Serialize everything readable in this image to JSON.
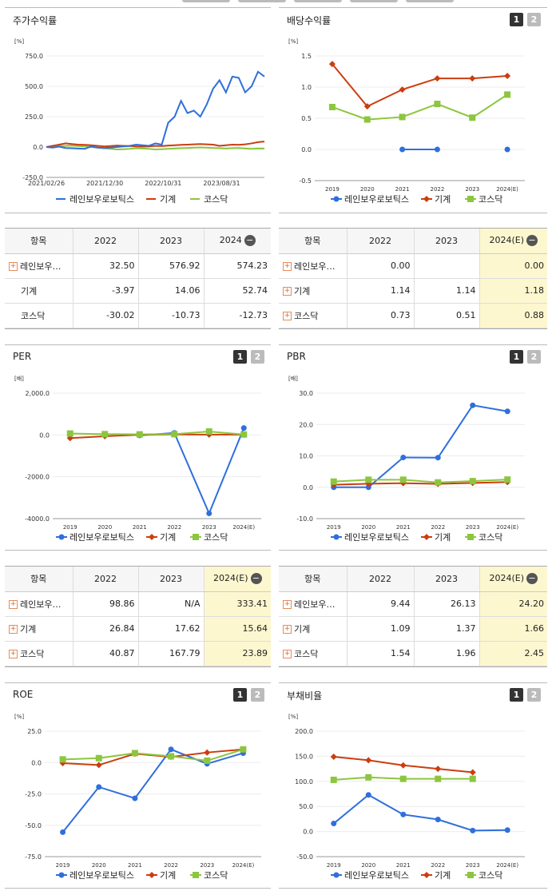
{
  "colors": {
    "rainbow": "#2f6fdc",
    "machine": "#cc3d10",
    "kosdaq": "#8cc63f"
  },
  "legend": [
    "레인보우로보틱스",
    "기계",
    "코스닥"
  ],
  "panels": {
    "stock_return": {
      "title": "주가수익률",
      "unit": "[%]"
    },
    "dividend": {
      "title": "배당수익률",
      "unit": "[%]"
    },
    "per": {
      "title": "PER",
      "unit": "[배]"
    },
    "pbr": {
      "title": "PBR",
      "unit": "[배]"
    },
    "roe": {
      "title": "ROE",
      "unit": "[%]"
    },
    "debt": {
      "title": "부채비율",
      "unit": "[%]"
    }
  },
  "buttons": {
    "one": "1",
    "two": "2"
  },
  "tables": {
    "stock_return": {
      "head": [
        "항목",
        "2022",
        "2023",
        "2024"
      ],
      "rows": [
        {
          "name": "레인보우…",
          "plus": true,
          "v": [
            "32.50",
            "576.92",
            "574.23"
          ]
        },
        {
          "name": "기계",
          "plus": false,
          "v": [
            "-3.97",
            "14.06",
            "52.74"
          ]
        },
        {
          "name": "코스닥",
          "plus": false,
          "v": [
            "-30.02",
            "-10.73",
            "-12.73"
          ]
        }
      ]
    },
    "dividend": {
      "head": [
        "항목",
        "2022",
        "2023",
        "2024(E)"
      ],
      "rows": [
        {
          "name": "레인보우…",
          "plus": true,
          "v": [
            "0.00",
            "",
            "0.00"
          ]
        },
        {
          "name": "기계",
          "plus": true,
          "v": [
            "1.14",
            "1.14",
            "1.18"
          ]
        },
        {
          "name": "코스닥",
          "plus": true,
          "v": [
            "0.73",
            "0.51",
            "0.88"
          ]
        }
      ]
    },
    "per": {
      "head": [
        "항목",
        "2022",
        "2023",
        "2024(E)"
      ],
      "rows": [
        {
          "name": "레인보우…",
          "plus": true,
          "v": [
            "98.86",
            "N/A",
            "333.41"
          ]
        },
        {
          "name": "기계",
          "plus": true,
          "v": [
            "26.84",
            "17.62",
            "15.64"
          ]
        },
        {
          "name": "코스닥",
          "plus": true,
          "v": [
            "40.87",
            "167.79",
            "23.89"
          ]
        }
      ]
    },
    "pbr": {
      "head": [
        "항목",
        "2022",
        "2023",
        "2024(E)"
      ],
      "rows": [
        {
          "name": "레인보우…",
          "plus": true,
          "v": [
            "9.44",
            "26.13",
            "24.20"
          ]
        },
        {
          "name": "기계",
          "plus": true,
          "v": [
            "1.09",
            "1.37",
            "1.66"
          ]
        },
        {
          "name": "코스닥",
          "plus": true,
          "v": [
            "1.54",
            "1.96",
            "2.45"
          ]
        }
      ]
    }
  },
  "chart_data": [
    {
      "id": "stock_return",
      "type": "line",
      "x_ticks": [
        "2021/02/26",
        "2021/12/30",
        "2022/10/31",
        "2023/08/31"
      ],
      "y_ticks": [
        "750.0",
        "500.0",
        "250.0",
        "0.0",
        "-250.0"
      ],
      "ylim": [
        -250,
        750
      ],
      "series": [
        {
          "name": "레인보우로보틱스",
          "values": [
            0,
            -5,
            3,
            -8,
            -10,
            -12,
            -15,
            5,
            -5,
            -8,
            -5,
            0,
            5,
            10,
            20,
            15,
            10,
            30,
            20,
            200,
            250,
            380,
            280,
            300,
            250,
            350,
            480,
            550,
            450,
            580,
            570,
            450,
            500,
            620,
            580
          ]
        },
        {
          "name": "기계",
          "values": [
            0,
            10,
            20,
            30,
            25,
            20,
            18,
            15,
            10,
            5,
            8,
            12,
            10,
            8,
            5,
            3,
            5,
            10,
            8,
            12,
            15,
            18,
            20,
            22,
            25,
            22,
            20,
            10,
            15,
            20,
            18,
            22,
            30,
            40,
            45
          ]
        },
        {
          "name": "코스닥",
          "values": [
            0,
            5,
            8,
            10,
            12,
            8,
            5,
            0,
            -5,
            -10,
            -15,
            -20,
            -18,
            -15,
            -10,
            -12,
            -15,
            -20,
            -18,
            -15,
            -12,
            -10,
            -8,
            -5,
            -3,
            -5,
            -8,
            -10,
            -12,
            -10,
            -8,
            -12,
            -15,
            -12,
            -13
          ]
        }
      ]
    },
    {
      "id": "dividend",
      "type": "line",
      "categories": [
        "2019",
        "2020",
        "2021",
        "2022",
        "2023",
        "2024(E)"
      ],
      "y_ticks": [
        "1.5",
        "1.0",
        "0.5",
        "0.0",
        "-0.5"
      ],
      "ylim": [
        -0.5,
        1.5
      ],
      "series": [
        {
          "name": "레인보우로보틱스",
          "values": [
            null,
            null,
            0.0,
            0.0,
            null,
            0.0
          ]
        },
        {
          "name": "기계",
          "values": [
            1.37,
            0.69,
            0.96,
            1.14,
            1.14,
            1.18
          ]
        },
        {
          "name": "코스닥",
          "values": [
            0.68,
            0.48,
            0.52,
            0.73,
            0.51,
            0.88
          ]
        }
      ]
    },
    {
      "id": "per",
      "type": "line",
      "categories": [
        "2019",
        "2020",
        "2021",
        "2022",
        "2023",
        "2024(E)"
      ],
      "y_ticks": [
        "2,000.0",
        "0.0",
        "-2000.0",
        "-4000.0"
      ],
      "ylim": [
        -4000,
        2000
      ],
      "series": [
        {
          "name": "레인보우로보틱스",
          "values": [
            null,
            null,
            -20,
            98.86,
            -3750,
            333.41
          ]
        },
        {
          "name": "기계",
          "values": [
            -150,
            -60,
            10,
            26.84,
            17.62,
            15.64
          ]
        },
        {
          "name": "코스닥",
          "values": [
            70,
            40,
            30,
            40.87,
            167.79,
            23.89
          ]
        }
      ]
    },
    {
      "id": "pbr",
      "type": "line",
      "categories": [
        "2019",
        "2020",
        "2021",
        "2022",
        "2023",
        "2024(E)"
      ],
      "y_ticks": [
        "30.0",
        "20.0",
        "10.0",
        "0.0",
        "-10.0"
      ],
      "ylim": [
        -10,
        30
      ],
      "series": [
        {
          "name": "레인보우로보틱스",
          "values": [
            0.0,
            0.0,
            9.5,
            9.44,
            26.13,
            24.2
          ]
        },
        {
          "name": "기계",
          "values": [
            0.8,
            1.1,
            1.3,
            1.09,
            1.37,
            1.66
          ]
        },
        {
          "name": "코스닥",
          "values": [
            1.8,
            2.4,
            2.4,
            1.54,
            1.96,
            2.45
          ]
        }
      ]
    },
    {
      "id": "roe",
      "type": "line",
      "categories": [
        "2019",
        "2020",
        "2021",
        "2022",
        "2023",
        "2024(E)"
      ],
      "y_ticks": [
        "25.0",
        "0.0",
        "-25.0",
        "-50.0",
        "-75.0"
      ],
      "ylim": [
        -75,
        25
      ],
      "series": [
        {
          "name": "레인보우로보틱스",
          "values": [
            -55.5,
            -19.5,
            -28.5,
            10.5,
            -1.0,
            7.5
          ]
        },
        {
          "name": "기계",
          "values": [
            -0.5,
            -2.0,
            7.0,
            4.5,
            8.0,
            10.5
          ]
        },
        {
          "name": "코스닥",
          "values": [
            2.5,
            3.5,
            7.5,
            5.0,
            1.5,
            10.5
          ]
        }
      ]
    },
    {
      "id": "debt",
      "type": "line",
      "categories": [
        "2019",
        "2020",
        "2021",
        "2022",
        "2023",
        "2024(E)"
      ],
      "y_ticks": [
        "200.0",
        "150.0",
        "100.0",
        "50.0",
        "0.0",
        "-50.0"
      ],
      "ylim": [
        -50,
        200
      ],
      "series": [
        {
          "name": "레인보우로보틱스",
          "values": [
            16,
            73,
            34,
            24,
            2,
            3
          ]
        },
        {
          "name": "기계",
          "values": [
            149,
            142,
            132,
            125,
            118,
            null
          ]
        },
        {
          "name": "코스닥",
          "values": [
            103,
            108,
            105,
            105,
            105,
            null
          ]
        }
      ]
    }
  ]
}
